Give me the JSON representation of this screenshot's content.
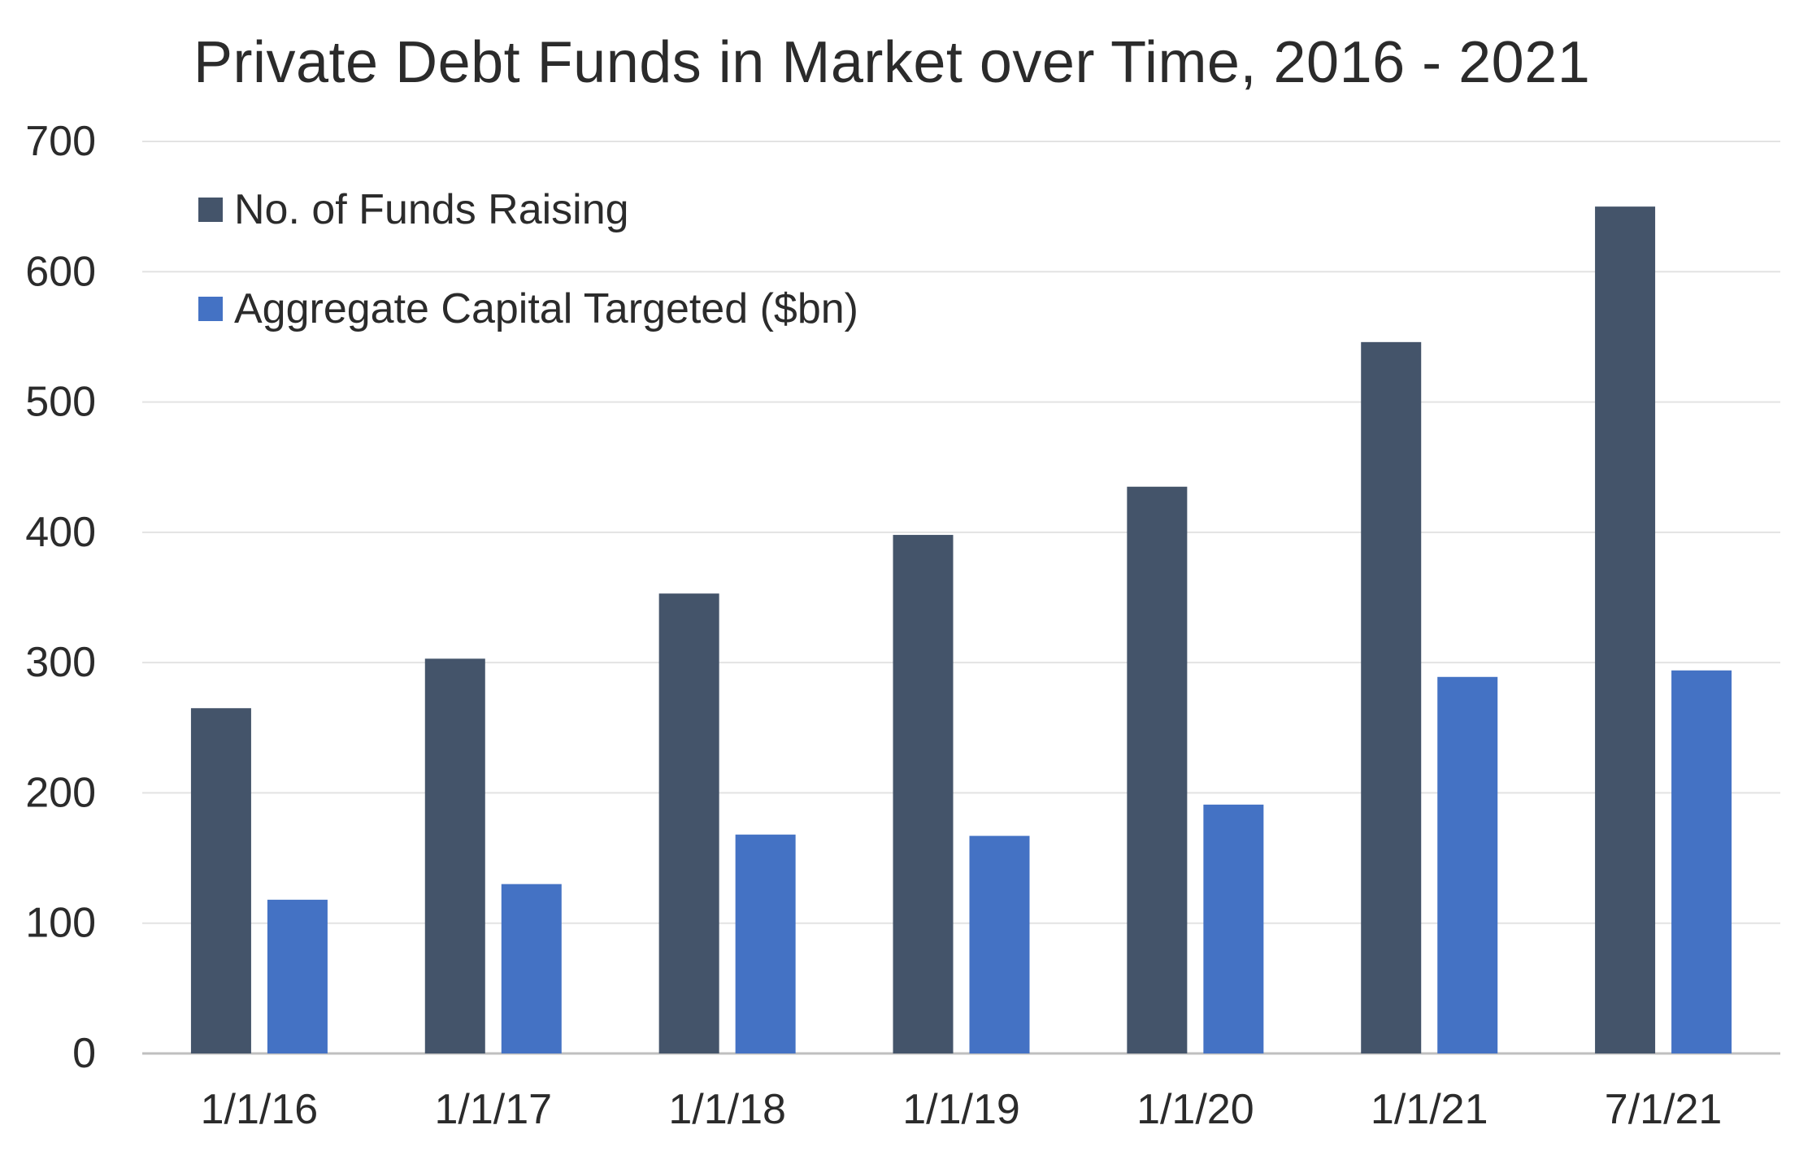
{
  "colors": {
    "series_dark": "#44546A",
    "series_blue": "#4472C4",
    "grid": "#E3E3E3",
    "axis": "#BFBFBF",
    "text": "#2B2B2B"
  },
  "chart_data": {
    "type": "bar",
    "title": "Private Debt Funds in Market over Time, 2016 - 2021",
    "xlabel": "",
    "ylabel": "",
    "categories": [
      "1/1/16",
      "1/1/17",
      "1/1/18",
      "1/1/19",
      "1/1/20",
      "1/1/21",
      "7/1/21"
    ],
    "series": [
      {
        "name": "No. of Funds Raising",
        "color": "#44546A",
        "values": [
          265,
          303,
          353,
          398,
          435,
          546,
          650
        ]
      },
      {
        "name": "Aggregate Capital Targeted ($bn)",
        "color": "#4472C4",
        "values": [
          118,
          130,
          168,
          167,
          191,
          289,
          294
        ]
      }
    ],
    "ylim": [
      0,
      700
    ],
    "yticks": [
      0,
      100,
      200,
      300,
      400,
      500,
      600,
      700
    ],
    "grid": true,
    "legend_position": "top-left"
  }
}
